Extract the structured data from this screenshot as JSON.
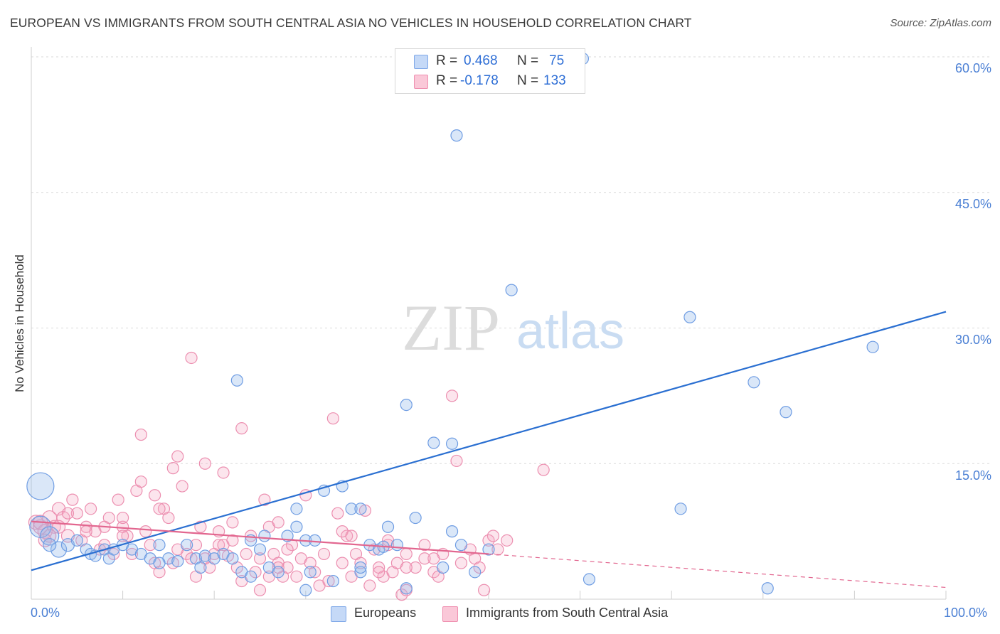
{
  "title": "EUROPEAN VS IMMIGRANTS FROM SOUTH CENTRAL ASIA NO VEHICLES IN HOUSEHOLD CORRELATION CHART",
  "source": "Source: ZipAtlas.com",
  "watermark": {
    "zip": "ZIP",
    "atlas": "atlas"
  },
  "legend": {
    "r_label": "R =",
    "n_label": "N =",
    "rows": [
      {
        "r": "0.468",
        "n": "75",
        "color": "#7fa8e8",
        "fill": "#c5d9f7"
      },
      {
        "r": "-0.178",
        "n": "133",
        "color": "#ef8fb0",
        "fill": "#fac8d8"
      }
    ]
  },
  "bottom_legend": [
    {
      "label": "Europeans",
      "color": "#7fa8e8",
      "fill": "#c5d9f7"
    },
    {
      "label": "Immigrants from South Central Asia",
      "color": "#ef8fb0",
      "fill": "#fac8d8"
    }
  ],
  "chart_data": {
    "type": "scatter",
    "title": "EUROPEAN VS IMMIGRANTS FROM SOUTH CENTRAL ASIA NO VEHICLES IN HOUSEHOLD CORRELATION CHART",
    "xlabel": "",
    "ylabel": "No Vehicles in Household",
    "xlim": [
      0,
      100
    ],
    "ylim": [
      0,
      60
    ],
    "x_tick_labels": [
      "0.0%",
      "100.0%"
    ],
    "y_ticks": [
      15,
      30,
      45,
      60
    ],
    "y_tick_labels": [
      "15.0%",
      "30.0%",
      "45.0%",
      "60.0%"
    ],
    "grid": true,
    "legend_position": "top-center",
    "series": [
      {
        "name": "Europeans",
        "color": "#4a86dc",
        "trend": {
          "x": [
            0,
            100
          ],
          "y": [
            3.2,
            31.8
          ],
          "style": "solid",
          "line_color": "#2a6fd1"
        },
        "points": [
          [
            1,
            12.5,
            18
          ],
          [
            1,
            8,
            14
          ],
          [
            2,
            7,
            12
          ],
          [
            3,
            5.5,
            10
          ],
          [
            2,
            6,
            8
          ],
          [
            4,
            6,
            8
          ],
          [
            5,
            6.5,
            7
          ],
          [
            6,
            5.5,
            7
          ],
          [
            6.5,
            5,
            7
          ],
          [
            7,
            4.8,
            7
          ],
          [
            8,
            5.5,
            7
          ],
          [
            8.5,
            4.5,
            7
          ],
          [
            9,
            5.5,
            7
          ],
          [
            10,
            6,
            7
          ],
          [
            11,
            5.5,
            7
          ],
          [
            12,
            5,
            7
          ],
          [
            13,
            4.5,
            7
          ],
          [
            14,
            6,
            7
          ],
          [
            15,
            4.5,
            7
          ],
          [
            16,
            4.2,
            7
          ],
          [
            17,
            6,
            7
          ],
          [
            18,
            4.5,
            7
          ],
          [
            18.5,
            3.5,
            7
          ],
          [
            19,
            4.8,
            7
          ],
          [
            20,
            4.5,
            7
          ],
          [
            21,
            5,
            7
          ],
          [
            22,
            4.5,
            7
          ],
          [
            23,
            3,
            7
          ],
          [
            24,
            6.5,
            7
          ],
          [
            25,
            5.5,
            7
          ],
          [
            25.5,
            7,
            7
          ],
          [
            26,
            3.5,
            7
          ],
          [
            27,
            3,
            7
          ],
          [
            28,
            7,
            7
          ],
          [
            29,
            8,
            7
          ],
          [
            30,
            6.5,
            7
          ],
          [
            22.5,
            24.2,
            7
          ],
          [
            24,
            2.5,
            7
          ],
          [
            29,
            10,
            7
          ],
          [
            30.5,
            3,
            7
          ],
          [
            31,
            6.5,
            7
          ],
          [
            32,
            12,
            7
          ],
          [
            33,
            2,
            7
          ],
          [
            34,
            12.5,
            7
          ],
          [
            35,
            10,
            7
          ],
          [
            36,
            3,
            7
          ],
          [
            37,
            6,
            7
          ],
          [
            38,
            5.5,
            7
          ],
          [
            39,
            8,
            7
          ],
          [
            40,
            6,
            7
          ],
          [
            41,
            1.2,
            7
          ],
          [
            42,
            9,
            7
          ],
          [
            30,
            1,
            7
          ],
          [
            36,
            10,
            7
          ],
          [
            38.5,
            5.8,
            7
          ],
          [
            41,
            21.5,
            7
          ],
          [
            44,
            17.3,
            7
          ],
          [
            46,
            17.2,
            7
          ],
          [
            46,
            7.5,
            7
          ],
          [
            48.5,
            3,
            7
          ],
          [
            45,
            3.5,
            7
          ],
          [
            36,
            3.5,
            7
          ],
          [
            47,
            6,
            7
          ],
          [
            50,
            5.5,
            7
          ],
          [
            46.5,
            51.3,
            7
          ],
          [
            60.3,
            59.8,
            7
          ],
          [
            52.5,
            34.2,
            7
          ],
          [
            61,
            2.2,
            7
          ],
          [
            71,
            10,
            7
          ],
          [
            72,
            31.2,
            7
          ],
          [
            79,
            24,
            7
          ],
          [
            80.5,
            1.2,
            7
          ],
          [
            82.5,
            20.7,
            7
          ],
          [
            92,
            27.9,
            7
          ],
          [
            14,
            4,
            7
          ]
        ]
      },
      {
        "name": "Immigrants from South Central Asia",
        "color": "#ef7fa5",
        "trend": {
          "x": [
            0,
            50
          ],
          "y": [
            8.6,
            5.0
          ],
          "style": "solid",
          "dashed_extension": {
            "x": [
              50,
              100
            ],
            "y": [
              5.0,
              1.3
            ]
          },
          "line_color": "#e2668f"
        },
        "points": [
          [
            0.5,
            8.5,
            9
          ],
          [
            1,
            8,
            9
          ],
          [
            1.5,
            7.5,
            9
          ],
          [
            2,
            9,
            9
          ],
          [
            2.5,
            8,
            8
          ],
          [
            3,
            10,
            8
          ],
          [
            3.5,
            9,
            8
          ],
          [
            4,
            7,
            8
          ],
          [
            4.5,
            11,
            7
          ],
          [
            5,
            9.5,
            7
          ],
          [
            5.5,
            6.5,
            7
          ],
          [
            6,
            8,
            7
          ],
          [
            6.5,
            10,
            7
          ],
          [
            7,
            7.5,
            7
          ],
          [
            7.5,
            5.5,
            7
          ],
          [
            8,
            6,
            7
          ],
          [
            8.5,
            9,
            7
          ],
          [
            9,
            5,
            7
          ],
          [
            9.5,
            11,
            7
          ],
          [
            10,
            8,
            7
          ],
          [
            10.5,
            7,
            7
          ],
          [
            11,
            5,
            7
          ],
          [
            11.5,
            12,
            7
          ],
          [
            12,
            13,
            7
          ],
          [
            12.5,
            7.5,
            7
          ],
          [
            13,
            6,
            7
          ],
          [
            13.5,
            4,
            7
          ],
          [
            14,
            3,
            7
          ],
          [
            14.5,
            10,
            7
          ],
          [
            15,
            9,
            7
          ],
          [
            15.5,
            14.5,
            7
          ],
          [
            16,
            15.8,
            7
          ],
          [
            16.5,
            12.5,
            7
          ],
          [
            17,
            5,
            7
          ],
          [
            17.5,
            4.5,
            7
          ],
          [
            18,
            6,
            7
          ],
          [
            18.5,
            8,
            7
          ],
          [
            19,
            15,
            7
          ],
          [
            19.5,
            3.5,
            7
          ],
          [
            20,
            5,
            7
          ],
          [
            20.5,
            6,
            7
          ],
          [
            21,
            14,
            7
          ],
          [
            21.5,
            4.8,
            7
          ],
          [
            22,
            8.5,
            7
          ],
          [
            22.5,
            3.5,
            7
          ],
          [
            23,
            2,
            7
          ],
          [
            23.5,
            5,
            7
          ],
          [
            24,
            7,
            7
          ],
          [
            24.5,
            3,
            7
          ],
          [
            25,
            4.5,
            7
          ],
          [
            25.5,
            11,
            7
          ],
          [
            26,
            8,
            7
          ],
          [
            26.5,
            5,
            7
          ],
          [
            27,
            4,
            7
          ],
          [
            27.5,
            2.5,
            7
          ],
          [
            28,
            3.5,
            7
          ],
          [
            28.5,
            6,
            7
          ],
          [
            29,
            2.5,
            7
          ],
          [
            29.5,
            4.5,
            7
          ],
          [
            30,
            11.5,
            7
          ],
          [
            30.5,
            4,
            7
          ],
          [
            31,
            3,
            7
          ],
          [
            31.5,
            1.5,
            7
          ],
          [
            32,
            5,
            7
          ],
          [
            32.5,
            2,
            7
          ],
          [
            33,
            20,
            7
          ],
          [
            33.5,
            9.5,
            7
          ],
          [
            34,
            4,
            7
          ],
          [
            34.5,
            7,
            7
          ],
          [
            35,
            2.5,
            7
          ],
          [
            35.5,
            5,
            7
          ],
          [
            36,
            4,
            7
          ],
          [
            36.5,
            9.8,
            7
          ],
          [
            37,
            1.5,
            7
          ],
          [
            37.5,
            5.5,
            7
          ],
          [
            38,
            3.5,
            7
          ],
          [
            38.5,
            2.5,
            7
          ],
          [
            39,
            6,
            7
          ],
          [
            39.5,
            3,
            7
          ],
          [
            40,
            4,
            7
          ],
          [
            40.5,
            0.5,
            7
          ],
          [
            41,
            5,
            7
          ],
          [
            42,
            3.5,
            7
          ],
          [
            43,
            6,
            7
          ],
          [
            44,
            3,
            7
          ],
          [
            45,
            5,
            7
          ],
          [
            46,
            22.5,
            7
          ],
          [
            46.5,
            15.3,
            7
          ],
          [
            47,
            4,
            7
          ],
          [
            48,
            5.5,
            7
          ],
          [
            48.5,
            4.5,
            7
          ],
          [
            49,
            3.5,
            7
          ],
          [
            50,
            6.5,
            7
          ],
          [
            50.5,
            7,
            7
          ],
          [
            51,
            5.5,
            7
          ],
          [
            52,
            6.5,
            7
          ],
          [
            44,
            4.5,
            7
          ],
          [
            17.5,
            26.7,
            7
          ],
          [
            12,
            18.2,
            7
          ],
          [
            23,
            18.9,
            7
          ],
          [
            13.5,
            11.5,
            7
          ],
          [
            14,
            10,
            7
          ],
          [
            10,
            9,
            7
          ],
          [
            8,
            8,
            7
          ],
          [
            6,
            7.5,
            7
          ],
          [
            1,
            8.5,
            9
          ],
          [
            2,
            7,
            8
          ],
          [
            1.5,
            6.5,
            8
          ],
          [
            3,
            8,
            8
          ],
          [
            4,
            9.5,
            7
          ],
          [
            19,
            4.5,
            7
          ],
          [
            21,
            6,
            7
          ],
          [
            27,
            3.5,
            7
          ],
          [
            27,
            8.5,
            7
          ],
          [
            28,
            5.5,
            7
          ],
          [
            22,
            6.5,
            7
          ],
          [
            16,
            5.5,
            7
          ],
          [
            15.5,
            4,
            7
          ],
          [
            34,
            7.5,
            7
          ],
          [
            18,
            2.5,
            7
          ],
          [
            39,
            6.5,
            7
          ],
          [
            41,
            3.5,
            7
          ],
          [
            41,
            1,
            7
          ],
          [
            38,
            3,
            7
          ],
          [
            26,
            2.5,
            7
          ],
          [
            20.5,
            7.5,
            7
          ],
          [
            25,
            1,
            7
          ],
          [
            49.5,
            1,
            7
          ],
          [
            43,
            4.5,
            7
          ],
          [
            44.5,
            2.5,
            7
          ],
          [
            35,
            7,
            7
          ],
          [
            56,
            14.3,
            7
          ],
          [
            10,
            7,
            7
          ]
        ]
      }
    ]
  }
}
